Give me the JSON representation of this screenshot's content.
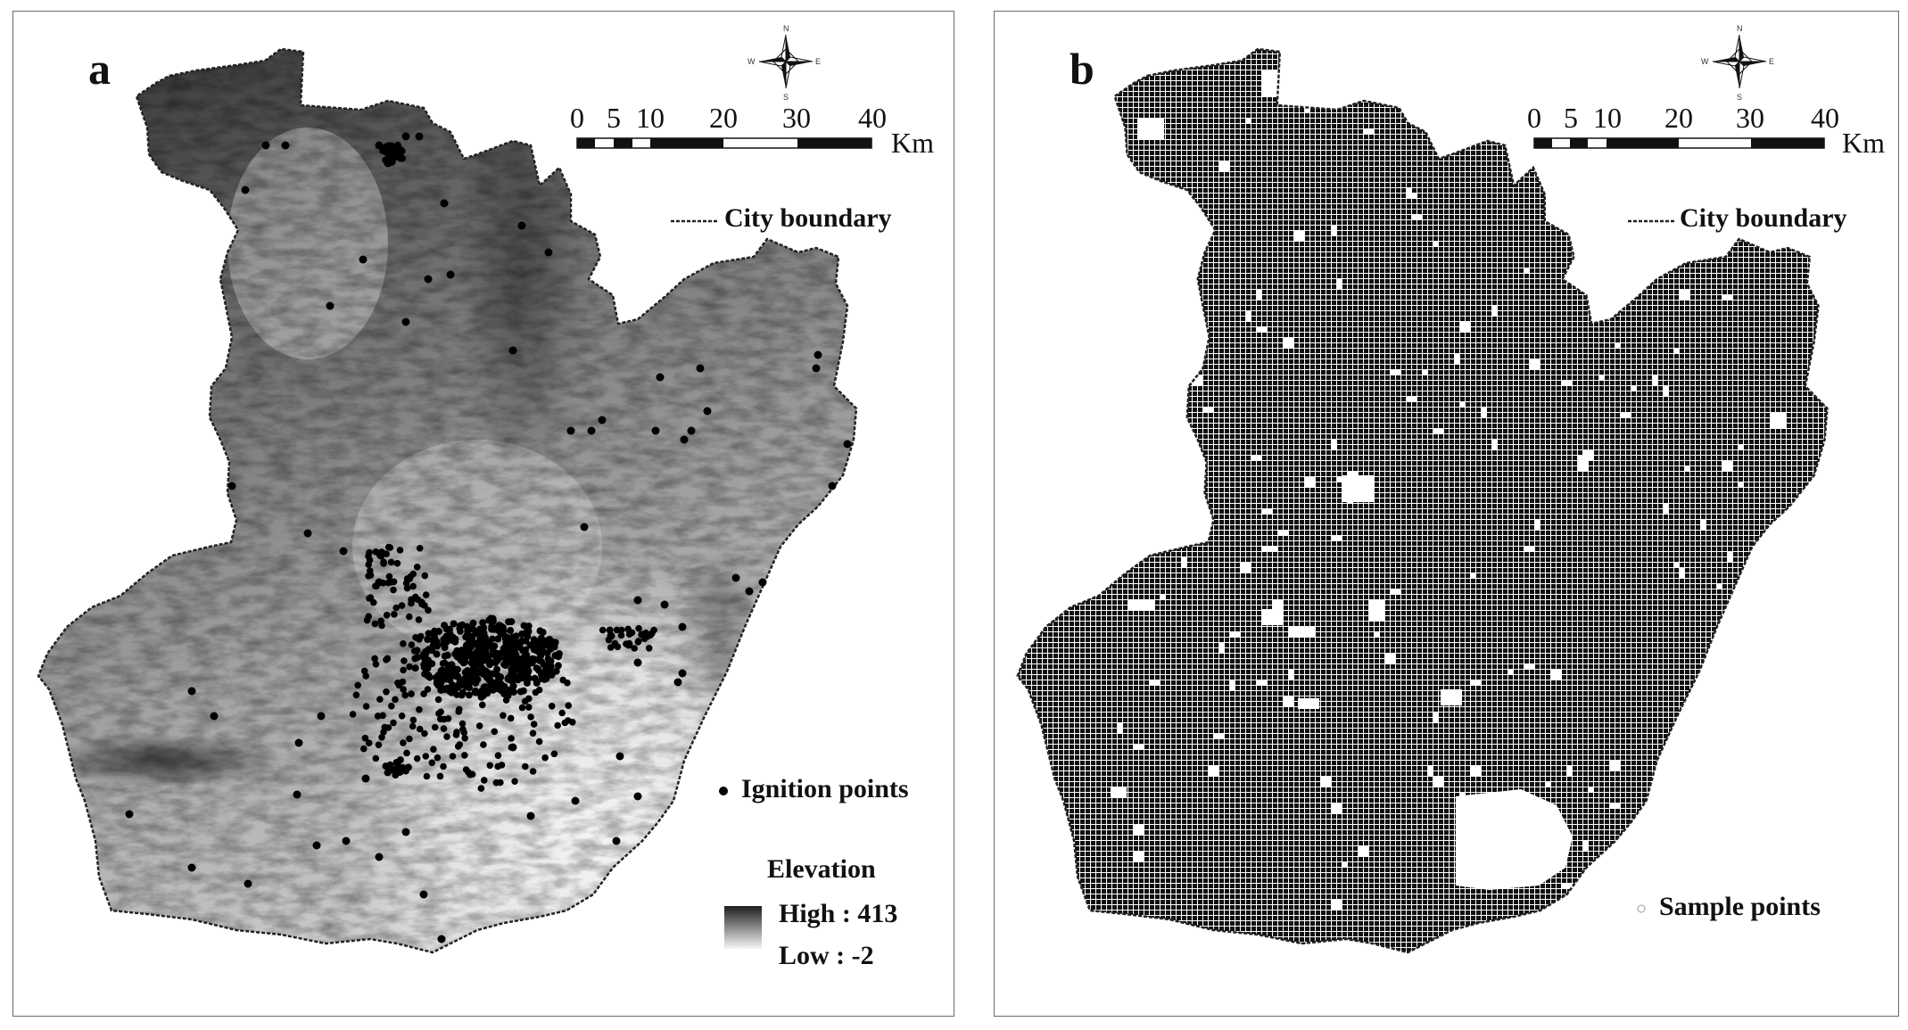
{
  "panels": [
    {
      "id": "a",
      "letter": "a",
      "scale": {
        "ticks": [
          "0",
          "5",
          "10",
          "20",
          "30",
          "40"
        ],
        "unit": "Km"
      },
      "compass": {
        "n": "N",
        "s": "S",
        "e": "E",
        "w": "W"
      },
      "legend": {
        "boundary_label": "City boundary",
        "points_label": "Ignition points",
        "elevation_title": "Elevation",
        "elevation_high": "High : 413",
        "elevation_low": "Low : -2"
      },
      "colors": {
        "boundary": "#333333",
        "points": "#000000",
        "dem_high": "#2a2a2a",
        "dem_low": "#f2f2f2"
      }
    },
    {
      "id": "b",
      "letter": "b",
      "scale": {
        "ticks": [
          "0",
          "5",
          "10",
          "20",
          "30",
          "40"
        ],
        "unit": "Km"
      },
      "compass": {
        "n": "N",
        "s": "S",
        "e": "E",
        "w": "W"
      },
      "legend": {
        "boundary_label": "City boundary",
        "points_label": "Sample points"
      },
      "colors": {
        "boundary": "#333333",
        "grid_fill": "#111111",
        "points": "#ffffff"
      }
    }
  ]
}
